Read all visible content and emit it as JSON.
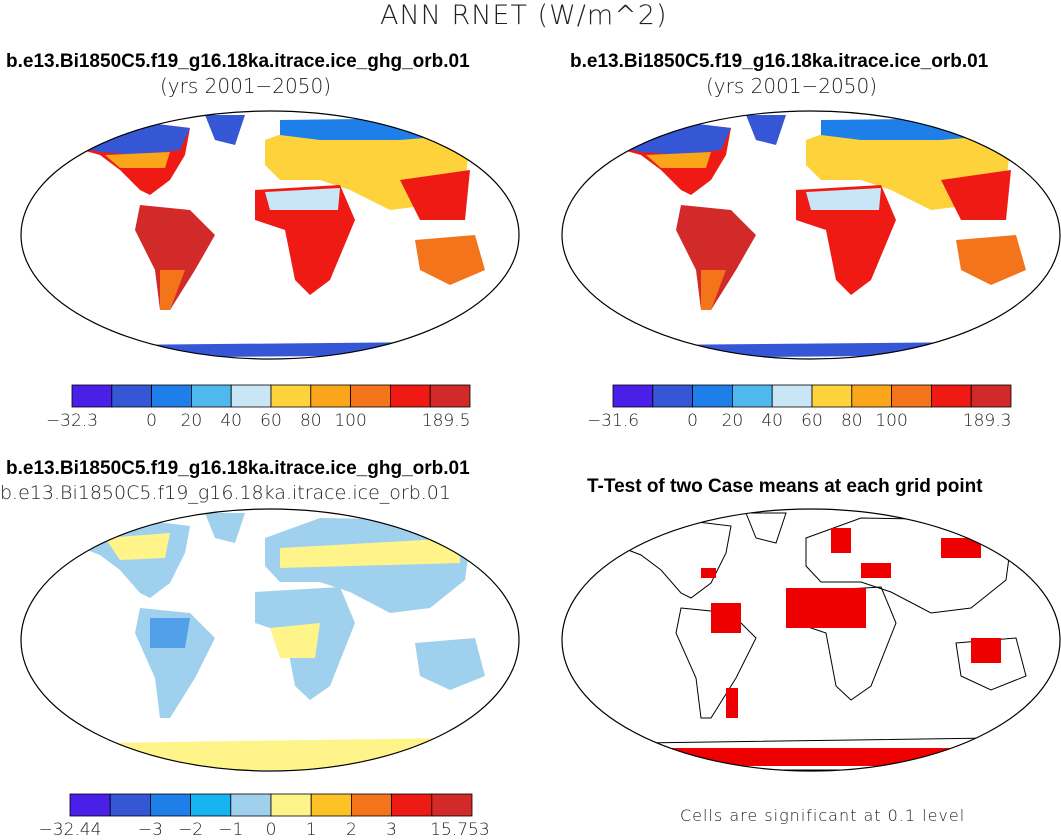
{
  "figure": {
    "title": "ANN RNET (W/m^2)",
    "panels": [
      {
        "id": "case1",
        "title": "b.e13.Bi1850C5.f19_g16.18ka.itrace.ice_ghg_orb.01",
        "subtitle": "(yrs 2001−2050)",
        "colorbar": {
          "colors": [
            "#4a1fe8",
            "#3557d6",
            "#1f7fe8",
            "#4fb8ee",
            "#c8e6f5",
            "#fdd23a",
            "#fba51a",
            "#f4741b",
            "#ef1a14",
            "#d22a28"
          ],
          "labels": [
            "−32.3",
            "0",
            "20",
            "40",
            "60",
            "80",
            "100",
            "189.5"
          ]
        }
      },
      {
        "id": "case2",
        "title": "b.e13.Bi1850C5.f19_g16.18ka.itrace.ice_orb.01",
        "subtitle": "(yrs 2001−2050)",
        "colorbar": {
          "colors": [
            "#4a1fe8",
            "#3557d6",
            "#1f7fe8",
            "#4fb8ee",
            "#c8e6f5",
            "#fdd23a",
            "#fba51a",
            "#f4741b",
            "#ef1a14",
            "#d22a28"
          ],
          "labels": [
            "−31.6",
            "0",
            "20",
            "40",
            "60",
            "80",
            "100",
            "189.3"
          ]
        }
      },
      {
        "id": "diff",
        "title": "b.e13.Bi1850C5.f19_g16.18ka.itrace.ice_ghg_orb.01",
        "subtitle": "b.e13.Bi1850C5.f19_g16.18ka.itrace.ice_orb.01",
        "colorbar": {
          "colors": [
            "#4a1fe8",
            "#3557d6",
            "#1f7fe8",
            "#17b4f0",
            "#9fd0ee",
            "#fff48a",
            "#fcc226",
            "#f4741b",
            "#ef1a14",
            "#d22a28"
          ],
          "labels": [
            "−32.44",
            "−3",
            "−2",
            "−1",
            "0",
            "1",
            "2",
            "3",
            "15.753"
          ]
        }
      },
      {
        "id": "ttest",
        "title": "T-Test of two Case means at each grid point",
        "note": "Cells are significant at 0.1 level"
      }
    ]
  }
}
